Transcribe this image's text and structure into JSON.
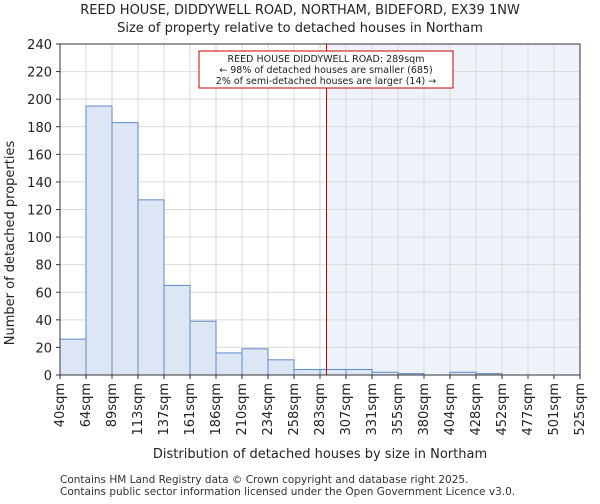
{
  "chart_data": {
    "type": "bar",
    "title": "REED HOUSE, DIDDYWELL ROAD, NORTHAM, BIDEFORD, EX39 1NW",
    "subtitle": "Size of property relative to detached houses in Northam",
    "xlabel": "Distribution of detached houses by size in Northam",
    "ylabel": "Number of detached properties",
    "ylim": [
      0,
      240
    ],
    "yticks": [
      0,
      20,
      40,
      60,
      80,
      100,
      120,
      140,
      160,
      180,
      200,
      220,
      240
    ],
    "bin_edges": [
      "40sqm",
      "64sqm",
      "89sqm",
      "113sqm",
      "137sqm",
      "161sqm",
      "186sqm",
      "210sqm",
      "234sqm",
      "258sqm",
      "283sqm",
      "307sqm",
      "331sqm",
      "355sqm",
      "380sqm",
      "404sqm",
      "428sqm",
      "452sqm",
      "477sqm",
      "501sqm",
      "525sqm"
    ],
    "values": [
      26,
      195,
      183,
      127,
      65,
      39,
      16,
      19,
      11,
      4,
      4,
      4,
      2,
      1,
      0,
      2,
      1,
      0,
      0,
      0
    ],
    "grid": true,
    "bar_color": "#dce6f4",
    "bar_edge_color": "#5b8ac6",
    "highlight_color": "#eef2fa",
    "marker": {
      "value_sqm": 289,
      "color": "#cc0000",
      "label_lines": [
        "REED HOUSE DIDDYWELL ROAD: 289sqm",
        "← 98% of detached houses are smaller (685)",
        "2% of semi-detached houses are larger (14) →"
      ]
    }
  },
  "footer": {
    "line1": "Contains HM Land Registry data © Crown copyright and database right 2025.",
    "line2": "Contains public sector information licensed under the Open Government Licence v3.0."
  }
}
